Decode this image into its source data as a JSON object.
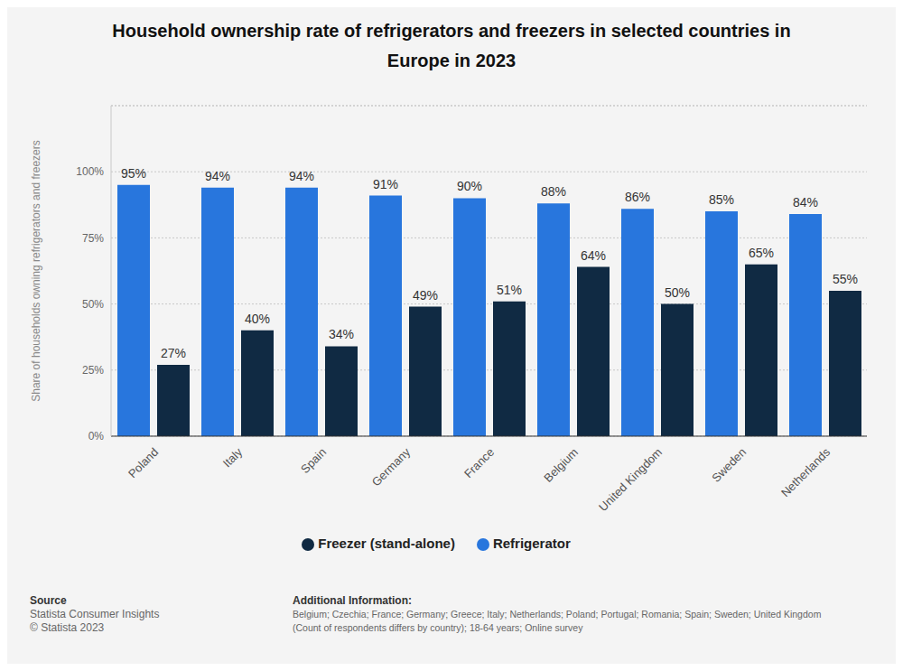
{
  "chart_data": {
    "type": "bar",
    "title": "Household ownership rate of refrigerators and freezers in selected countries in Europe in 2023",
    "y_label": "Share of households owning refrigerators and freezers",
    "categories": [
      "Poland",
      "Italy",
      "Spain",
      "Germany",
      "France",
      "Belgium",
      "United Kingdom",
      "Sweden",
      "Netherlands"
    ],
    "series": [
      {
        "name": "Refrigerator",
        "color": "#2876dd",
        "values": [
          95,
          94,
          94,
          91,
          90,
          88,
          86,
          85,
          84
        ],
        "value_labels": [
          "95%",
          "94%",
          "94%",
          "91%",
          "90%",
          "88%",
          "86%",
          "85%",
          "84%"
        ]
      },
      {
        "name": "Freezer (stand-alone)",
        "color": "#102a43",
        "values": [
          27,
          40,
          34,
          49,
          51,
          64,
          50,
          65,
          55
        ],
        "value_labels": [
          "27%",
          "40%",
          "34%",
          "49%",
          "51%",
          "64%",
          "50%",
          "65%",
          "55%"
        ]
      }
    ],
    "ylim": [
      0,
      125
    ],
    "yticks": [
      {
        "value": 0,
        "label": "0%"
      },
      {
        "value": 25,
        "label": "25%"
      },
      {
        "value": 50,
        "label": "50%"
      },
      {
        "value": 75,
        "label": "75%"
      },
      {
        "value": 100,
        "label": "100%"
      }
    ],
    "grid": true,
    "legend": "bottom",
    "data_labels": true,
    "source_title": "Source",
    "source": [
      "Statista Consumer Insights",
      "© Statista 2023"
    ],
    "info_title": "Additional Information:",
    "info": [
      "Belgium; Czechia; France; Germany; Greece; Italy; Netherlands; Poland; Portugal; Romania; Spain; Sweden; United Kingdom",
      "(Count of respondents differs by country); 18-64 years; Online survey"
    ]
  }
}
